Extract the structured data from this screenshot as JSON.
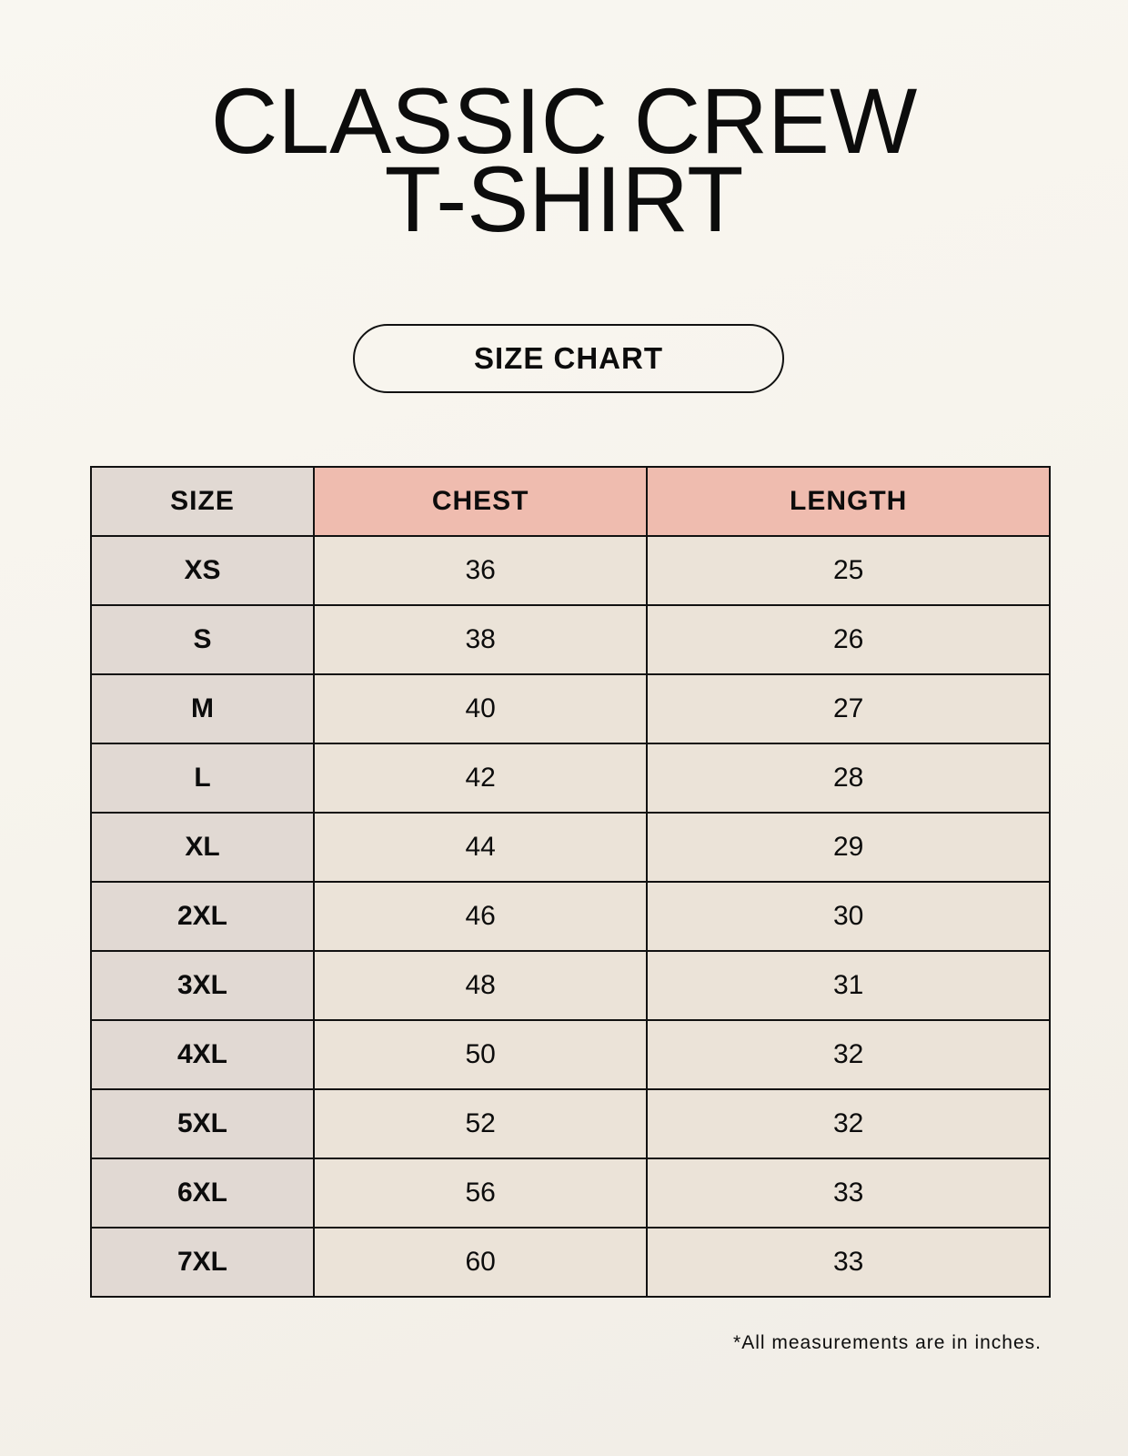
{
  "title": {
    "line1": "CLASSIC CREW",
    "line2": "T-SHIRT"
  },
  "badge": "SIZE CHART",
  "table": {
    "headers": [
      "SIZE",
      "CHEST",
      "LENGTH"
    ],
    "rows": [
      [
        "XS",
        "36",
        "25"
      ],
      [
        "S",
        "38",
        "26"
      ],
      [
        "M",
        "40",
        "27"
      ],
      [
        "L",
        "42",
        "28"
      ],
      [
        "XL",
        "44",
        "29"
      ],
      [
        "2XL",
        "46",
        "30"
      ],
      [
        "3XL",
        "48",
        "31"
      ],
      [
        "4XL",
        "50",
        "32"
      ],
      [
        "5XL",
        "52",
        "32"
      ],
      [
        "6XL",
        "56",
        "33"
      ],
      [
        "7XL",
        "60",
        "33"
      ]
    ]
  },
  "footnote": "*All measurements are in inches.",
  "colors": {
    "size_column": "#e1d9d3",
    "header_accent": "#efbcaf",
    "cell": "#ebe3d8",
    "background": "#f8f6f0"
  }
}
